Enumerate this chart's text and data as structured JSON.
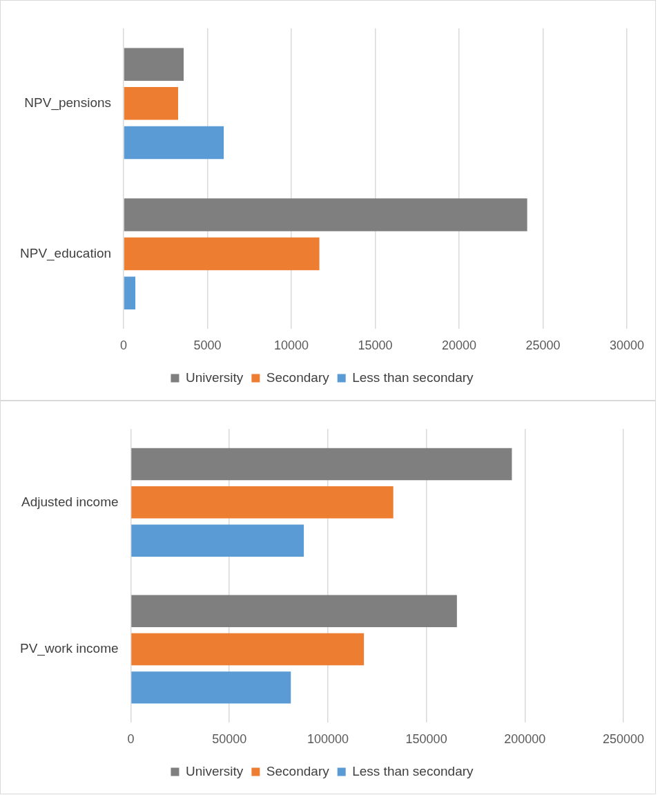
{
  "chart_data": [
    {
      "type": "bar",
      "orientation": "horizontal",
      "categories": [
        "NPV_pensions",
        "NPV_education"
      ],
      "series": [
        {
          "name": "University",
          "color": "#7f7f7f",
          "values": [
            3580,
            24060
          ]
        },
        {
          "name": "Secondary",
          "color": "#ed7d31",
          "values": [
            3250,
            11670
          ]
        },
        {
          "name": "Less than secondary",
          "color": "#5b9bd5",
          "values": [
            5970,
            700
          ]
        }
      ],
      "xlim": [
        0,
        30000
      ],
      "xticks": [
        0,
        5000,
        10000,
        15000,
        20000,
        25000,
        30000
      ],
      "grid": "x",
      "legend": "bottom"
    },
    {
      "type": "bar",
      "orientation": "horizontal",
      "categories": [
        "Adjusted income",
        "PV_work income"
      ],
      "series": [
        {
          "name": "University",
          "color": "#7f7f7f",
          "values": [
            193400,
            165500
          ]
        },
        {
          "name": "Secondary",
          "color": "#ed7d31",
          "values": [
            133200,
            118300
          ]
        },
        {
          "name": "Less than secondary",
          "color": "#5b9bd5",
          "values": [
            87800,
            81200
          ]
        }
      ],
      "xlim": [
        0,
        250000
      ],
      "xticks": [
        0,
        50000,
        100000,
        150000,
        200000,
        250000
      ],
      "grid": "x",
      "legend": "bottom"
    }
  ]
}
